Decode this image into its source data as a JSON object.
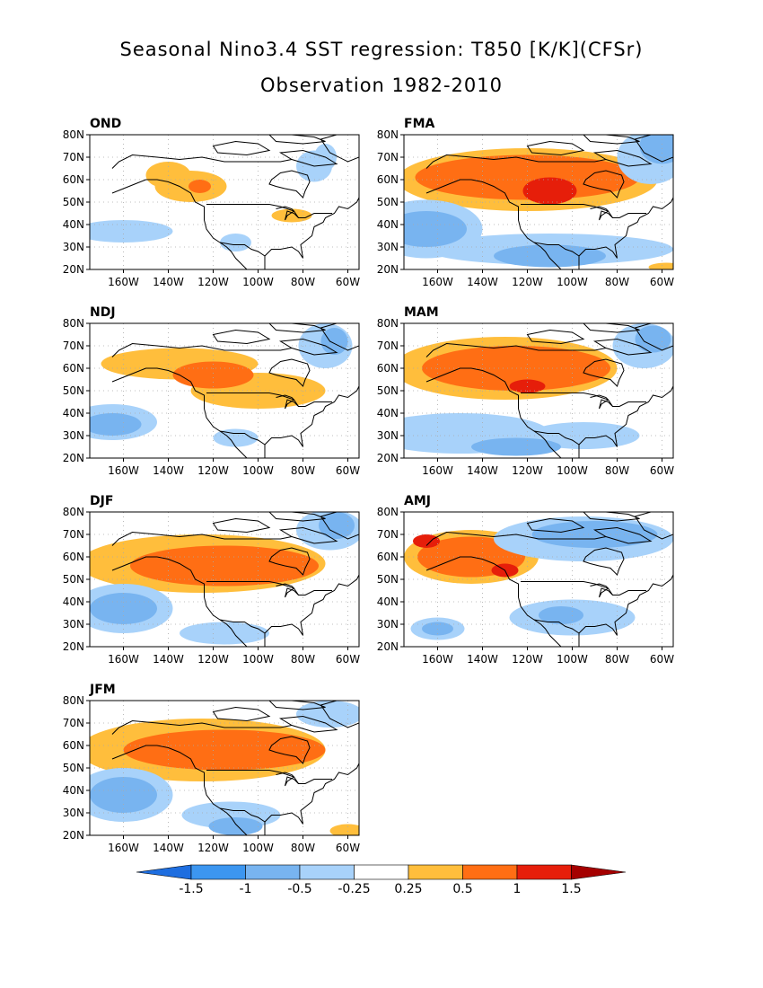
{
  "title_line1": "Seasonal Nino3.4 SST regression: T850 [K/K](CFSr)",
  "title_line2": "Observation 1982-2010",
  "lon_ticks": [
    "160W",
    "140W",
    "120W",
    "100W",
    "80W",
    "60W"
  ],
  "lat_ticks": [
    "20N",
    "30N",
    "40N",
    "50N",
    "60N",
    "70N",
    "80N"
  ],
  "panels": [
    {
      "label": "OND",
      "pattern": "weak_warm_northwest_weak_cold_pacific"
    },
    {
      "label": "FMA",
      "pattern": "strong_warm_canada_cold_south"
    },
    {
      "label": "NDJ",
      "pattern": "warm_band_nw_to_se_cold_pacific"
    },
    {
      "label": "MAM",
      "pattern": "warm_canada_cold_south"
    },
    {
      "label": "DJF",
      "pattern": "warm_canada_cold_pacific"
    },
    {
      "label": "AMJ",
      "pattern": "warm_alaska_cold_east"
    },
    {
      "label": "JFM",
      "pattern": "warm_canada_cold_pacific_and_south"
    }
  ],
  "colorbar": {
    "labels": [
      "-1.5",
      "-1",
      "-0.5",
      "-0.25",
      "0.25",
      "0.5",
      "1",
      "1.5"
    ],
    "colors": [
      "#1e6ee0",
      "#3c96f0",
      "#78b4f0",
      "#a8d2fa",
      "#ffffff",
      "#ffbe3c",
      "#ff6e14",
      "#e61e0a",
      "#a50000"
    ]
  },
  "colors": {
    "map_line": "#000000",
    "grid": "#aaaaaa"
  }
}
